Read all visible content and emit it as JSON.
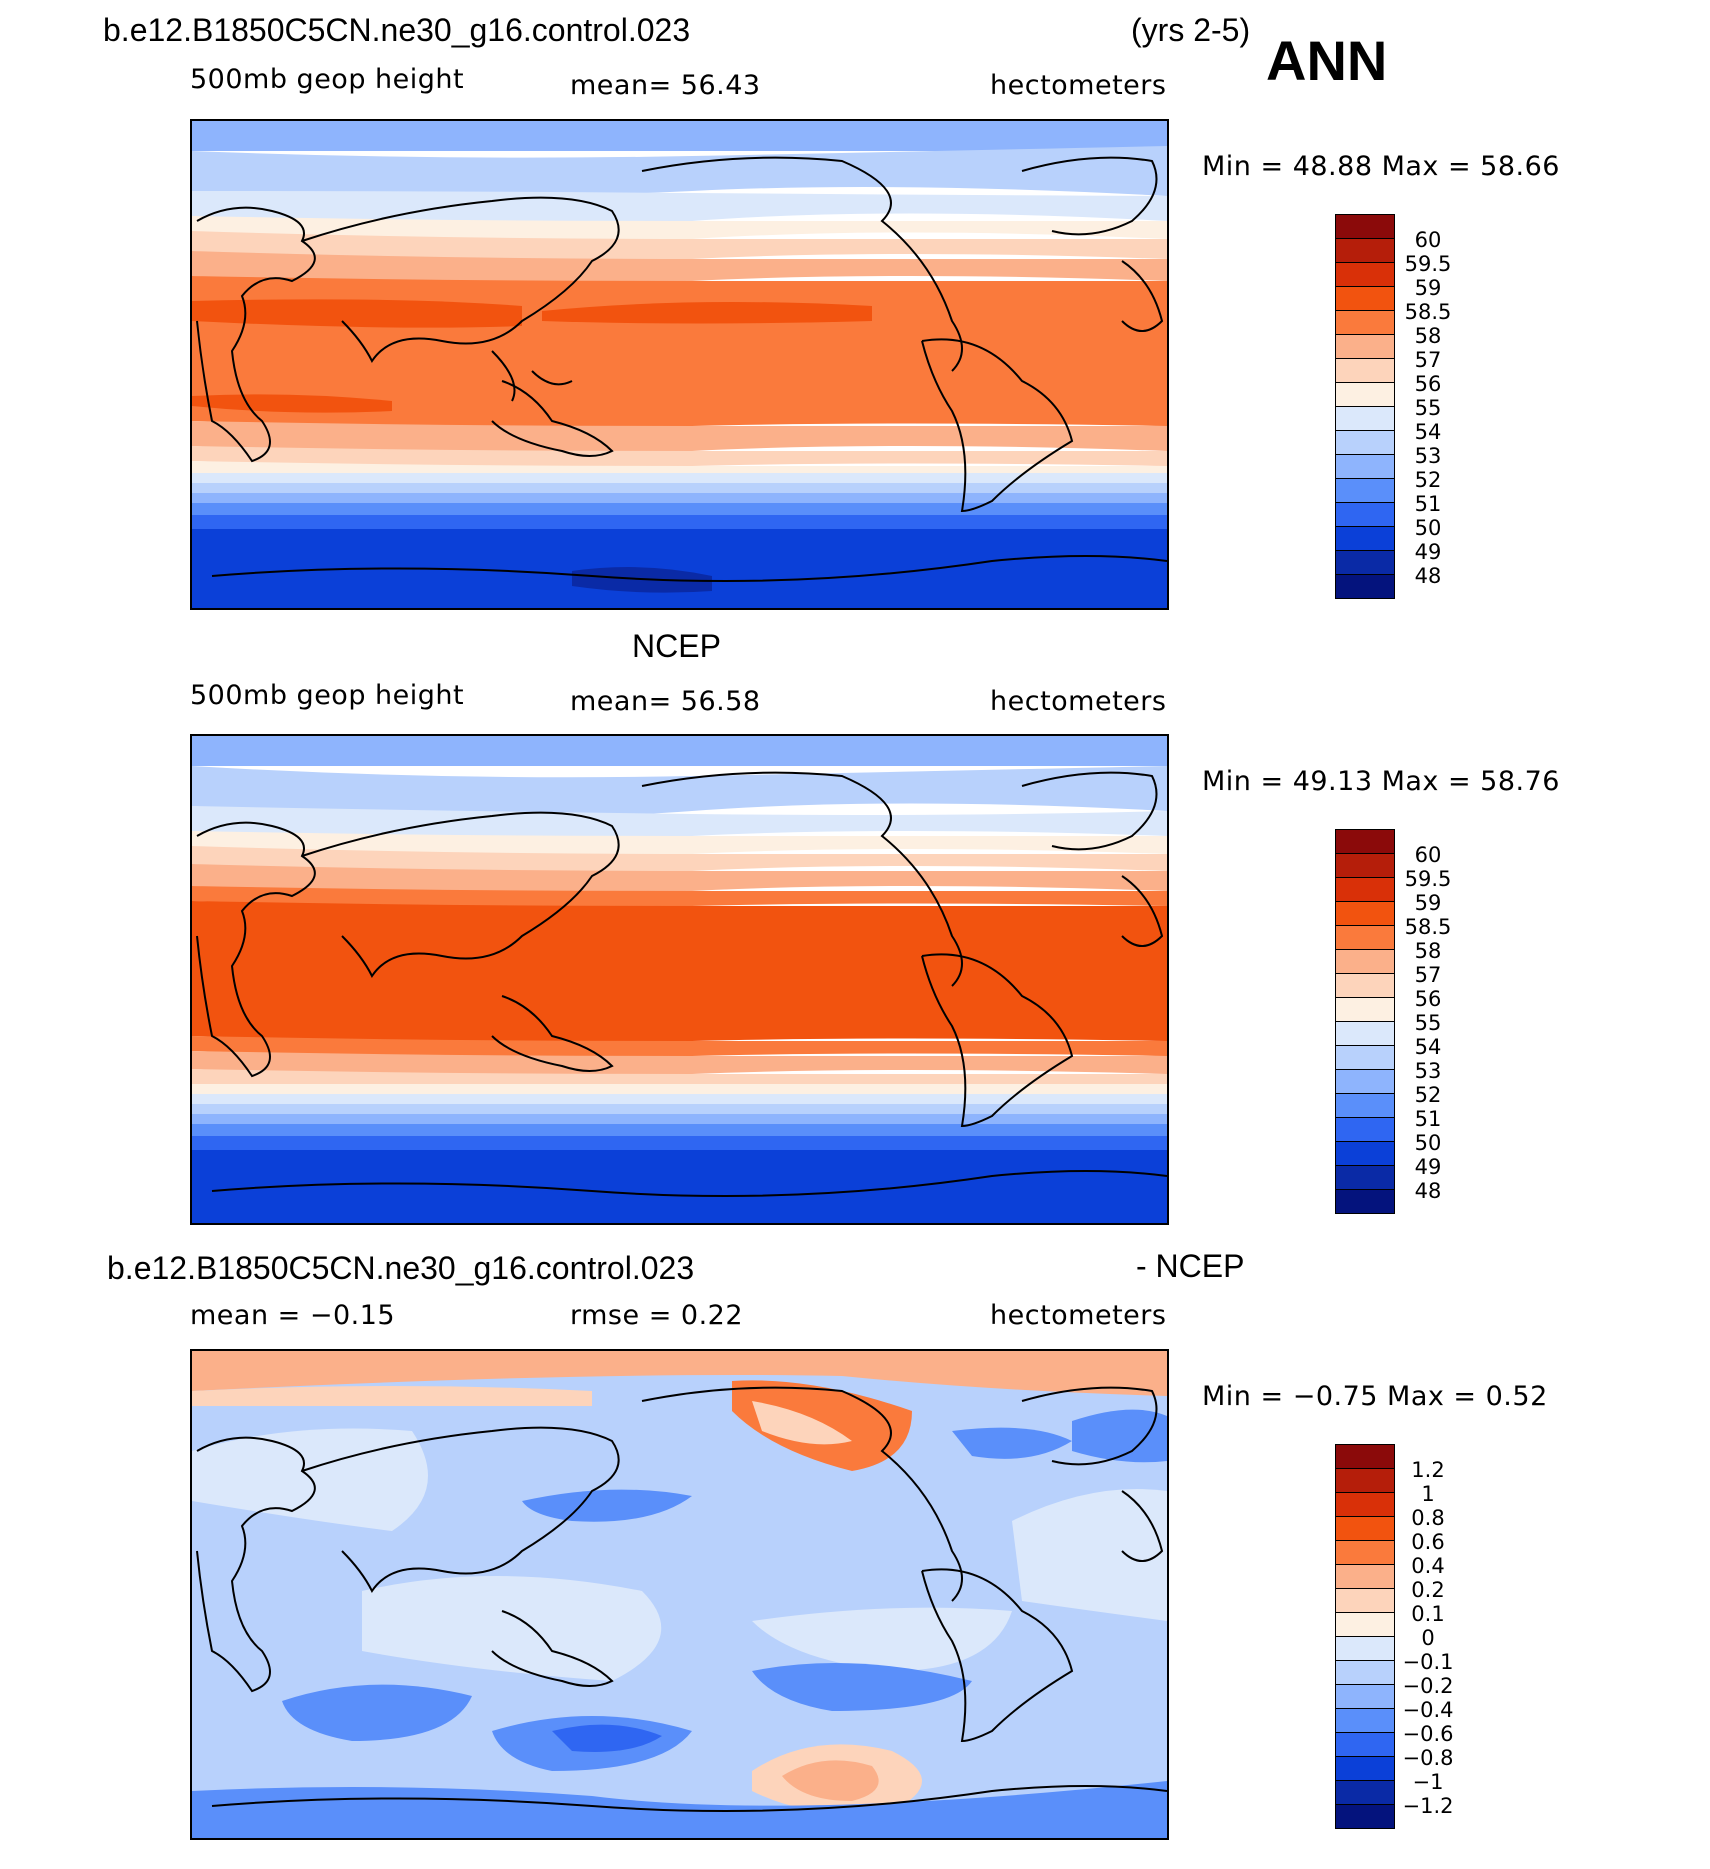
{
  "header": {
    "case_title": "b.e12.B1850C5CN.ne30_g16.control.023",
    "years": "(yrs 2-5)",
    "season": "ANN"
  },
  "panels": [
    {
      "id": "model",
      "title": "",
      "left_label": "500mb geop height",
      "mid_label": "mean=   56.43",
      "right_label": "hectometers",
      "minmax": "Min =    48.88  Max =    58.66",
      "colorbar_labels": [
        "60",
        "59.5",
        "59",
        "58.5",
        "58",
        "57",
        "56",
        "55",
        "54",
        "53",
        "52",
        "51",
        "50",
        "49",
        "48"
      ],
      "colorbar_colors": [
        "#8b0a0a",
        "#b51e0a",
        "#d93008",
        "#f2530f",
        "#fa7a3c",
        "#fbb08a",
        "#fdd4bb",
        "#fdf0e2",
        "#dbe8fb",
        "#b8d1fc",
        "#8eb4fd",
        "#5a8ffa",
        "#2f66f2",
        "#0b40d8",
        "#0a2aa6",
        "#04137d"
      ]
    },
    {
      "id": "obs",
      "title": "NCEP",
      "left_label": "500mb geop height",
      "mid_label": "mean=   56.58",
      "right_label": "hectometers",
      "minmax": "Min =    49.13  Max =    58.76",
      "colorbar_labels": [
        "60",
        "59.5",
        "59",
        "58.5",
        "58",
        "57",
        "56",
        "55",
        "54",
        "53",
        "52",
        "51",
        "50",
        "49",
        "48"
      ],
      "colorbar_colors": [
        "#8b0a0a",
        "#b51e0a",
        "#d93008",
        "#f2530f",
        "#fa7a3c",
        "#fbb08a",
        "#fdd4bb",
        "#fdf0e2",
        "#dbe8fb",
        "#b8d1fc",
        "#8eb4fd",
        "#5a8ffa",
        "#2f66f2",
        "#0b40d8",
        "#0a2aa6",
        "#04137d"
      ]
    },
    {
      "id": "diff",
      "title_left": "b.e12.B1850C5CN.ne30_g16.control.023",
      "title_right": "- NCEP",
      "left_label": "mean =   −0.15",
      "mid_label": "rmse =    0.22",
      "right_label": "hectometers",
      "minmax": "Min =   −0.75  Max =     0.52",
      "colorbar_labels": [
        "1.2",
        "1",
        "0.8",
        "0.6",
        "0.4",
        "0.2",
        "0.1",
        "0",
        "−0.1",
        "−0.2",
        "−0.4",
        "−0.6",
        "−0.8",
        "−1",
        "−1.2"
      ],
      "colorbar_colors": [
        "#8b0a0a",
        "#b51e0a",
        "#d93008",
        "#f2530f",
        "#fa7a3c",
        "#fbb08a",
        "#fdd4bb",
        "#fdf0e2",
        "#dbe8fb",
        "#b8d1fc",
        "#8eb4fd",
        "#5a8ffa",
        "#2f66f2",
        "#0b40d8",
        "#0a2aa6",
        "#04137d"
      ]
    }
  ]
}
